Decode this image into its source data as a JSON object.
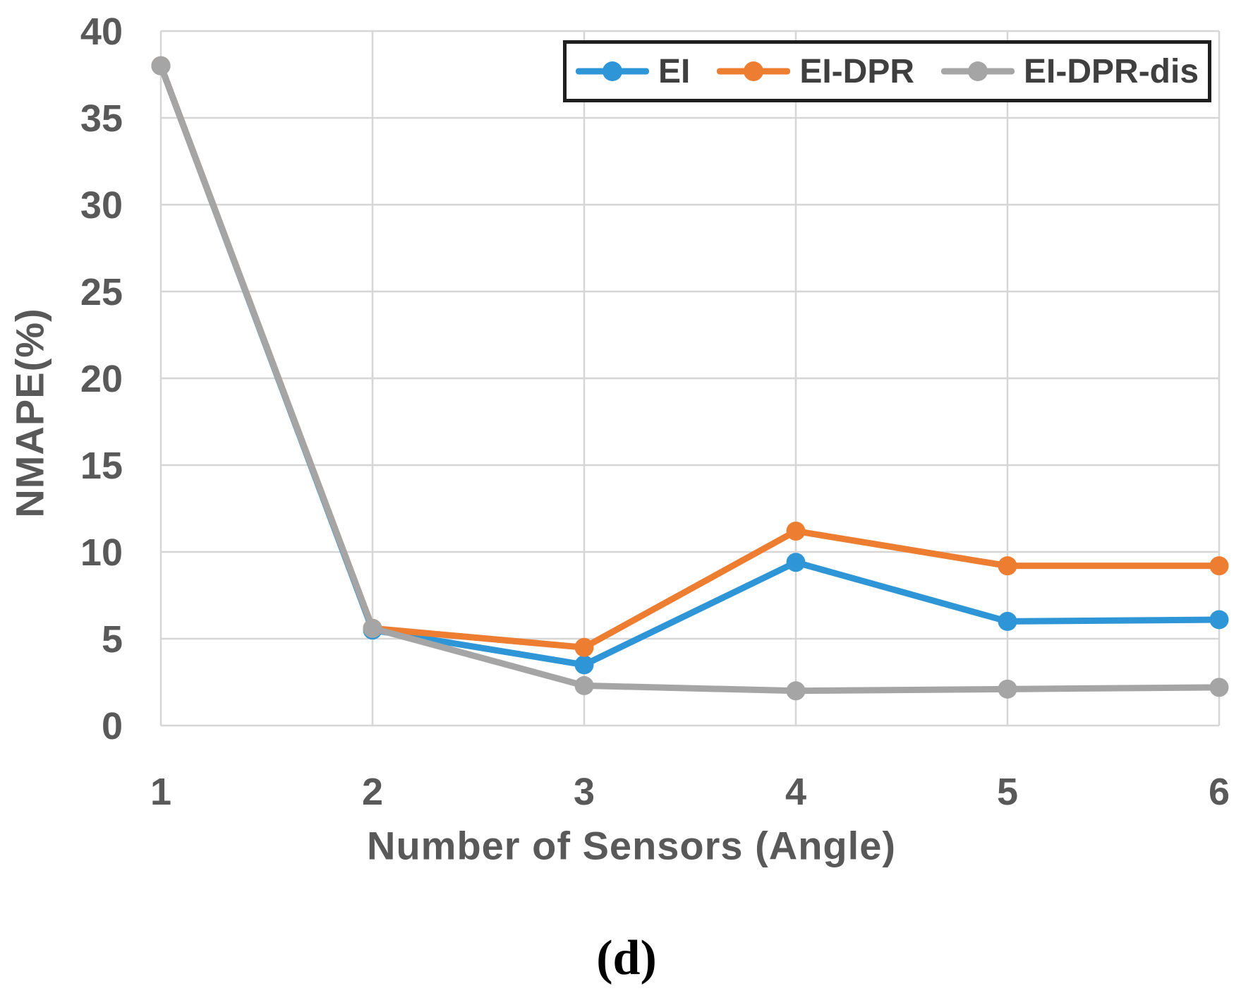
{
  "figure": {
    "caption": "(d)"
  },
  "chart_data": {
    "type": "line",
    "title": "",
    "xlabel": "Number of Sensors (Angle)",
    "ylabel": "NMAPE(%)",
    "x": [
      1,
      2,
      3,
      4,
      5,
      6
    ],
    "x_tick_labels": [
      "1",
      "2",
      "3",
      "4",
      "5",
      "6"
    ],
    "xlim": [
      1,
      6
    ],
    "ylim": [
      0,
      40
    ],
    "y_ticks": [
      0,
      5,
      10,
      15,
      20,
      25,
      30,
      35,
      40
    ],
    "grid": true,
    "legend_position": "top-center-inside",
    "series": [
      {
        "name": "EI",
        "color": "#2E96D6",
        "values": [
          38.0,
          5.5,
          3.5,
          9.4,
          6.0,
          6.1
        ]
      },
      {
        "name": "EI-DPR",
        "color": "#ED7D31",
        "values": [
          38.0,
          5.6,
          4.5,
          11.2,
          9.2,
          9.2
        ]
      },
      {
        "name": "EI-DPR-dis",
        "color": "#A5A5A5",
        "values": [
          38.0,
          5.6,
          2.3,
          2.0,
          2.1,
          2.2
        ]
      }
    ],
    "colors": {
      "grid": "#D6D6D6",
      "tick_label": "#595959",
      "axis_title": "#595959",
      "legend_text": "#3F3F3F",
      "legend_border": "#1F1F1F"
    }
  }
}
